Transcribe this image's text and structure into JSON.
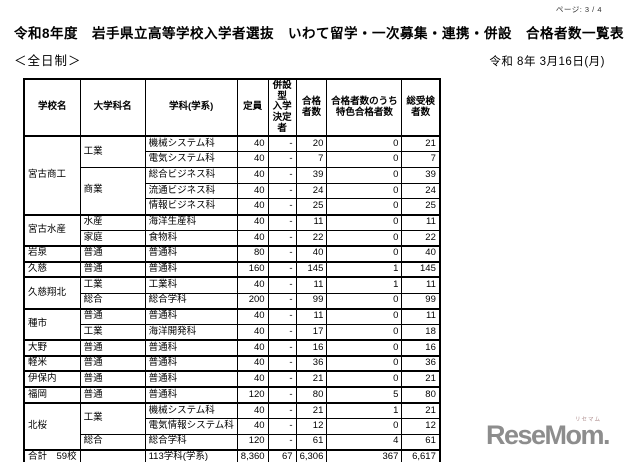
{
  "page": {
    "page_label": "ページ: 3 / 4",
    "title": "令和8年度　岩手県立高等学校入学者選抜　いわて留学・一次募集・連携・併設　合格者数一覧表",
    "subtitle": "＜全日制＞",
    "date": "令和 8年 3月16日(月)"
  },
  "table": {
    "headers": {
      "school": "学校名",
      "major": "大学科名",
      "department": "学科(学系)",
      "capacity": "定員",
      "heisetsu": "併設型\n入学\n決定者",
      "passers": "合格\n者数",
      "tokushoku": "合格者数のうち\n特色合格者数",
      "examinees": "総受検\n者数"
    },
    "schools": [
      {
        "name": "宮古商工",
        "majors": [
          {
            "name": "工業",
            "rows": [
              {
                "department": "機械システム科",
                "capacity": "40",
                "heisetsu": "-",
                "passers": "20",
                "tokushoku": "0",
                "examinees": "21"
              },
              {
                "department": "電気システム科",
                "capacity": "40",
                "heisetsu": "-",
                "passers": "7",
                "tokushoku": "0",
                "examinees": "7"
              }
            ]
          },
          {
            "name": "商業",
            "rows": [
              {
                "department": "総合ビジネス科",
                "capacity": "40",
                "heisetsu": "-",
                "passers": "39",
                "tokushoku": "0",
                "examinees": "39"
              },
              {
                "department": "流通ビジネス科",
                "capacity": "40",
                "heisetsu": "-",
                "passers": "24",
                "tokushoku": "0",
                "examinees": "24"
              },
              {
                "department": "情報ビジネス科",
                "capacity": "40",
                "heisetsu": "-",
                "passers": "25",
                "tokushoku": "0",
                "examinees": "25"
              }
            ]
          }
        ]
      },
      {
        "name": "宮古水産",
        "majors": [
          {
            "name": "水産",
            "rows": [
              {
                "department": "海洋生産科",
                "capacity": "40",
                "heisetsu": "-",
                "passers": "11",
                "tokushoku": "0",
                "examinees": "11"
              }
            ]
          },
          {
            "name": "家庭",
            "rows": [
              {
                "department": "食物科",
                "capacity": "40",
                "heisetsu": "-",
                "passers": "22",
                "tokushoku": "0",
                "examinees": "22"
              }
            ]
          }
        ]
      },
      {
        "name": "岩泉",
        "majors": [
          {
            "name": "普通",
            "rows": [
              {
                "department": "普通科",
                "capacity": "80",
                "heisetsu": "-",
                "passers": "40",
                "tokushoku": "0",
                "examinees": "40"
              }
            ]
          }
        ]
      },
      {
        "name": "久慈",
        "majors": [
          {
            "name": "普通",
            "rows": [
              {
                "department": "普通科",
                "capacity": "160",
                "heisetsu": "-",
                "passers": "145",
                "tokushoku": "1",
                "examinees": "145"
              }
            ]
          }
        ]
      },
      {
        "name": "久慈翔北",
        "majors": [
          {
            "name": "工業",
            "rows": [
              {
                "department": "工業科",
                "capacity": "40",
                "heisetsu": "-",
                "passers": "11",
                "tokushoku": "1",
                "examinees": "11"
              }
            ]
          },
          {
            "name": "総合",
            "rows": [
              {
                "department": "総合学科",
                "capacity": "200",
                "heisetsu": "-",
                "passers": "99",
                "tokushoku": "0",
                "examinees": "99"
              }
            ]
          }
        ]
      },
      {
        "name": "種市",
        "majors": [
          {
            "name": "普通",
            "rows": [
              {
                "department": "普通科",
                "capacity": "40",
                "heisetsu": "-",
                "passers": "11",
                "tokushoku": "0",
                "examinees": "11"
              }
            ]
          },
          {
            "name": "工業",
            "rows": [
              {
                "department": "海洋開発科",
                "capacity": "40",
                "heisetsu": "-",
                "passers": "17",
                "tokushoku": "0",
                "examinees": "18"
              }
            ]
          }
        ]
      },
      {
        "name": "大野",
        "majors": [
          {
            "name": "普通",
            "rows": [
              {
                "department": "普通科",
                "capacity": "40",
                "heisetsu": "-",
                "passers": "16",
                "tokushoku": "0",
                "examinees": "16"
              }
            ]
          }
        ]
      },
      {
        "name": "軽米",
        "majors": [
          {
            "name": "普通",
            "rows": [
              {
                "department": "普通科",
                "capacity": "40",
                "heisetsu": "-",
                "passers": "36",
                "tokushoku": "0",
                "examinees": "36"
              }
            ]
          }
        ]
      },
      {
        "name": "伊保内",
        "majors": [
          {
            "name": "普通",
            "rows": [
              {
                "department": "普通科",
                "capacity": "40",
                "heisetsu": "-",
                "passers": "21",
                "tokushoku": "0",
                "examinees": "21"
              }
            ]
          }
        ]
      },
      {
        "name": "福岡",
        "majors": [
          {
            "name": "普通",
            "rows": [
              {
                "department": "普通科",
                "capacity": "120",
                "heisetsu": "-",
                "passers": "80",
                "tokushoku": "5",
                "examinees": "80"
              }
            ]
          }
        ]
      },
      {
        "name": "北桜",
        "majors": [
          {
            "name": "工業",
            "rows": [
              {
                "department": "機械システム科",
                "capacity": "40",
                "heisetsu": "-",
                "passers": "21",
                "tokushoku": "1",
                "examinees": "21"
              },
              {
                "department": "電気情報システム科",
                "capacity": "40",
                "heisetsu": "-",
                "passers": "12",
                "tokushoku": "0",
                "examinees": "12"
              }
            ]
          },
          {
            "name": "総合",
            "rows": [
              {
                "department": "総合学科",
                "capacity": "120",
                "heisetsu": "-",
                "passers": "61",
                "tokushoku": "4",
                "examinees": "61"
              }
            ]
          }
        ]
      }
    ],
    "total": {
      "school": "合計　59校",
      "major": "",
      "department": "113学科(学系)",
      "capacity": "8,360",
      "heisetsu": "67",
      "passers": "6,306",
      "tokushoku": "367",
      "examinees": "6,617"
    }
  },
  "watermark": {
    "kana": "リセマム",
    "logo": "ReseMom.",
    "logo_color": "#8d8d8d",
    "kana_color": "#b08f8f"
  }
}
